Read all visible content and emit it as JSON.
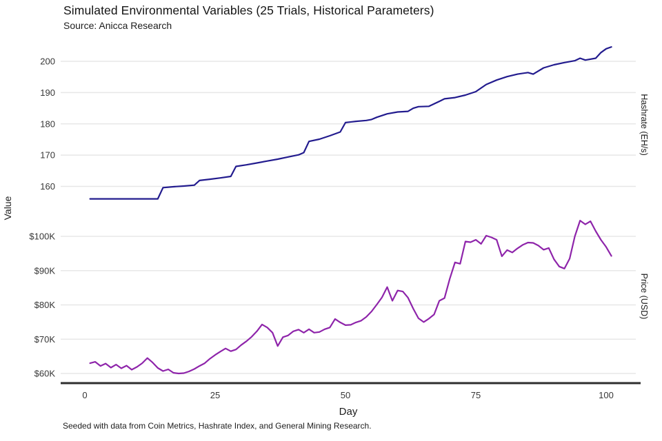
{
  "header": {
    "title": "Simulated Environmental Variables (25 Trials, Historical Parameters)",
    "subtitle": "Source: Anicca Research"
  },
  "axes": {
    "y_label": "Value",
    "x_label": "Day",
    "right_label_top": "Hashrate (EH/s)",
    "right_label_bottom": "Price (USD)"
  },
  "footer": {
    "caption": "Seeded with data from Coin Metrics, Hashrate Index, and General Mining Research."
  },
  "colors": {
    "hashrate_line": "#221b8e",
    "price_line": "#8e24aa",
    "gridline": "#e7e7e7",
    "axis_baseline": "#2e2e2e",
    "tick_text": "#363636"
  },
  "chart_data": {
    "type": "line",
    "title": "Simulated Environmental Variables (25 Trials, Historical Parameters)",
    "xlabel": "Day",
    "ylabel": "Value",
    "x_ticks": [
      0,
      25,
      50,
      75,
      100
    ],
    "x_range": [
      0,
      101
    ],
    "grid": true,
    "legend": "none (series labeled on right axis)",
    "subplots": [
      {
        "name": "Hashrate (EH/s)",
        "tick_labels": [
          "200",
          "190",
          "180",
          "170",
          "160"
        ],
        "tick_values": [
          200,
          190,
          180,
          170,
          160
        ]
      },
      {
        "name": "Price (USD)",
        "tick_labels": [
          "$100K",
          "$90K",
          "$80K",
          "$70K",
          "$60K"
        ],
        "tick_values": [
          100,
          90,
          80,
          70,
          60
        ]
      }
    ],
    "series": [
      {
        "name": "Hashrate (EH/s)",
        "axis": "hashrate",
        "units": "EH/s",
        "points": [
          [
            1,
            156
          ],
          [
            5,
            156
          ],
          [
            9,
            156
          ],
          [
            13,
            156
          ],
          [
            14,
            156
          ],
          [
            15,
            159.6
          ],
          [
            17,
            159.9
          ],
          [
            19,
            160.1
          ],
          [
            21,
            160.4
          ],
          [
            22,
            161.9
          ],
          [
            24,
            162.3
          ],
          [
            26,
            162.7
          ],
          [
            28,
            163.2
          ],
          [
            29,
            166.4
          ],
          [
            31,
            166.9
          ],
          [
            33,
            167.5
          ],
          [
            35,
            168.1
          ],
          [
            37,
            168.7
          ],
          [
            39,
            169.4
          ],
          [
            41,
            170.1
          ],
          [
            42,
            170.8
          ],
          [
            43,
            174.4
          ],
          [
            45,
            175.1
          ],
          [
            47,
            176.2
          ],
          [
            49,
            177.4
          ],
          [
            50,
            180.4
          ],
          [
            52,
            180.8
          ],
          [
            54,
            181.1
          ],
          [
            55,
            181.4
          ],
          [
            56,
            182.1
          ],
          [
            58,
            183.2
          ],
          [
            60,
            183.8
          ],
          [
            62,
            184.0
          ],
          [
            63,
            185.0
          ],
          [
            64,
            185.5
          ],
          [
            66,
            185.6
          ],
          [
            68,
            187.2
          ],
          [
            69,
            188.0
          ],
          [
            71,
            188.4
          ],
          [
            73,
            189.2
          ],
          [
            75,
            190.3
          ],
          [
            77,
            192.6
          ],
          [
            79,
            194.0
          ],
          [
            81,
            195.1
          ],
          [
            83,
            195.9
          ],
          [
            85,
            196.4
          ],
          [
            86,
            195.9
          ],
          [
            88,
            197.9
          ],
          [
            90,
            198.9
          ],
          [
            92,
            199.6
          ],
          [
            94,
            200.2
          ],
          [
            95,
            201.0
          ],
          [
            96,
            200.4
          ],
          [
            98,
            201.0
          ],
          [
            99,
            202.8
          ],
          [
            100,
            204.0
          ],
          [
            101,
            204.6
          ]
        ]
      },
      {
        "name": "Price (USD)",
        "axis": "price",
        "units": "thousand USD",
        "points": [
          [
            1,
            63.0
          ],
          [
            2,
            63.4
          ],
          [
            3,
            62.2
          ],
          [
            4,
            62.9
          ],
          [
            5,
            61.7
          ],
          [
            6,
            62.6
          ],
          [
            7,
            61.5
          ],
          [
            8,
            62.3
          ],
          [
            9,
            61.1
          ],
          [
            10,
            61.9
          ],
          [
            11,
            63.0
          ],
          [
            12,
            64.5
          ],
          [
            13,
            63.2
          ],
          [
            14,
            61.6
          ],
          [
            15,
            60.7
          ],
          [
            16,
            61.2
          ],
          [
            17,
            60.2
          ],
          [
            18,
            60.0
          ],
          [
            19,
            60.1
          ],
          [
            20,
            60.6
          ],
          [
            21,
            61.3
          ],
          [
            22,
            62.2
          ],
          [
            23,
            63.0
          ],
          [
            24,
            64.3
          ],
          [
            25,
            65.4
          ],
          [
            26,
            66.4
          ],
          [
            27,
            67.3
          ],
          [
            28,
            66.5
          ],
          [
            29,
            67.0
          ],
          [
            30,
            68.3
          ],
          [
            31,
            69.4
          ],
          [
            32,
            70.7
          ],
          [
            33,
            72.3
          ],
          [
            34,
            74.3
          ],
          [
            35,
            73.4
          ],
          [
            36,
            71.9
          ],
          [
            37,
            68.0
          ],
          [
            38,
            70.6
          ],
          [
            39,
            71.1
          ],
          [
            40,
            72.3
          ],
          [
            41,
            72.8
          ],
          [
            42,
            71.9
          ],
          [
            43,
            72.9
          ],
          [
            44,
            71.9
          ],
          [
            45,
            72.1
          ],
          [
            46,
            72.9
          ],
          [
            47,
            73.4
          ],
          [
            48,
            75.9
          ],
          [
            49,
            74.9
          ],
          [
            50,
            74.1
          ],
          [
            51,
            74.2
          ],
          [
            52,
            74.9
          ],
          [
            53,
            75.4
          ],
          [
            54,
            76.5
          ],
          [
            55,
            78.1
          ],
          [
            56,
            80.1
          ],
          [
            57,
            82.2
          ],
          [
            58,
            85.2
          ],
          [
            59,
            81.2
          ],
          [
            60,
            84.2
          ],
          [
            61,
            83.9
          ],
          [
            62,
            82.1
          ],
          [
            63,
            78.9
          ],
          [
            64,
            76.1
          ],
          [
            65,
            75.0
          ],
          [
            66,
            76.0
          ],
          [
            67,
            77.2
          ],
          [
            68,
            81.2
          ],
          [
            69,
            82.0
          ],
          [
            70,
            87.6
          ],
          [
            71,
            92.4
          ],
          [
            72,
            92.0
          ],
          [
            73,
            98.5
          ],
          [
            74,
            98.3
          ],
          [
            75,
            99.0
          ],
          [
            76,
            97.8
          ],
          [
            77,
            100.2
          ],
          [
            78,
            99.7
          ],
          [
            79,
            99.0
          ],
          [
            80,
            94.2
          ],
          [
            81,
            96.0
          ],
          [
            82,
            95.3
          ],
          [
            83,
            96.5
          ],
          [
            84,
            97.5
          ],
          [
            85,
            98.2
          ],
          [
            86,
            98.1
          ],
          [
            87,
            97.3
          ],
          [
            88,
            96.1
          ],
          [
            89,
            96.6
          ],
          [
            90,
            93.3
          ],
          [
            91,
            91.2
          ],
          [
            92,
            90.6
          ],
          [
            93,
            93.5
          ],
          [
            94,
            100.0
          ],
          [
            95,
            104.6
          ],
          [
            96,
            103.5
          ],
          [
            97,
            104.4
          ],
          [
            98,
            101.5
          ],
          [
            99,
            99.0
          ],
          [
            100,
            96.9
          ],
          [
            101,
            94.3
          ]
        ]
      }
    ]
  }
}
